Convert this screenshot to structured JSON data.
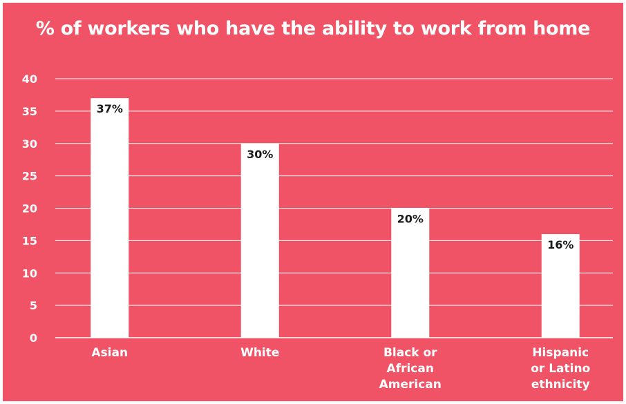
{
  "chart_data": {
    "type": "bar",
    "title": "% of workers who have the ability to work from home",
    "categories": [
      [
        "Asian"
      ],
      [
        "White"
      ],
      [
        "Black or",
        "African",
        "American"
      ],
      [
        "Hispanic",
        "or Latino",
        "ethnicity"
      ]
    ],
    "values": [
      37,
      30,
      20,
      16
    ],
    "data_labels": [
      "37%",
      "30%",
      "20%",
      "16%"
    ],
    "ylim": [
      0,
      40
    ],
    "yticks": [
      0,
      5,
      10,
      15,
      20,
      25,
      30,
      35,
      40
    ],
    "grid": true,
    "xlabel": "",
    "ylabel": ""
  },
  "colors": {
    "background": "#ef5365",
    "bar": "#ffffff",
    "gridline": "#ffffff",
    "text": "#ffffff",
    "data_label": "#1a1a1a"
  }
}
